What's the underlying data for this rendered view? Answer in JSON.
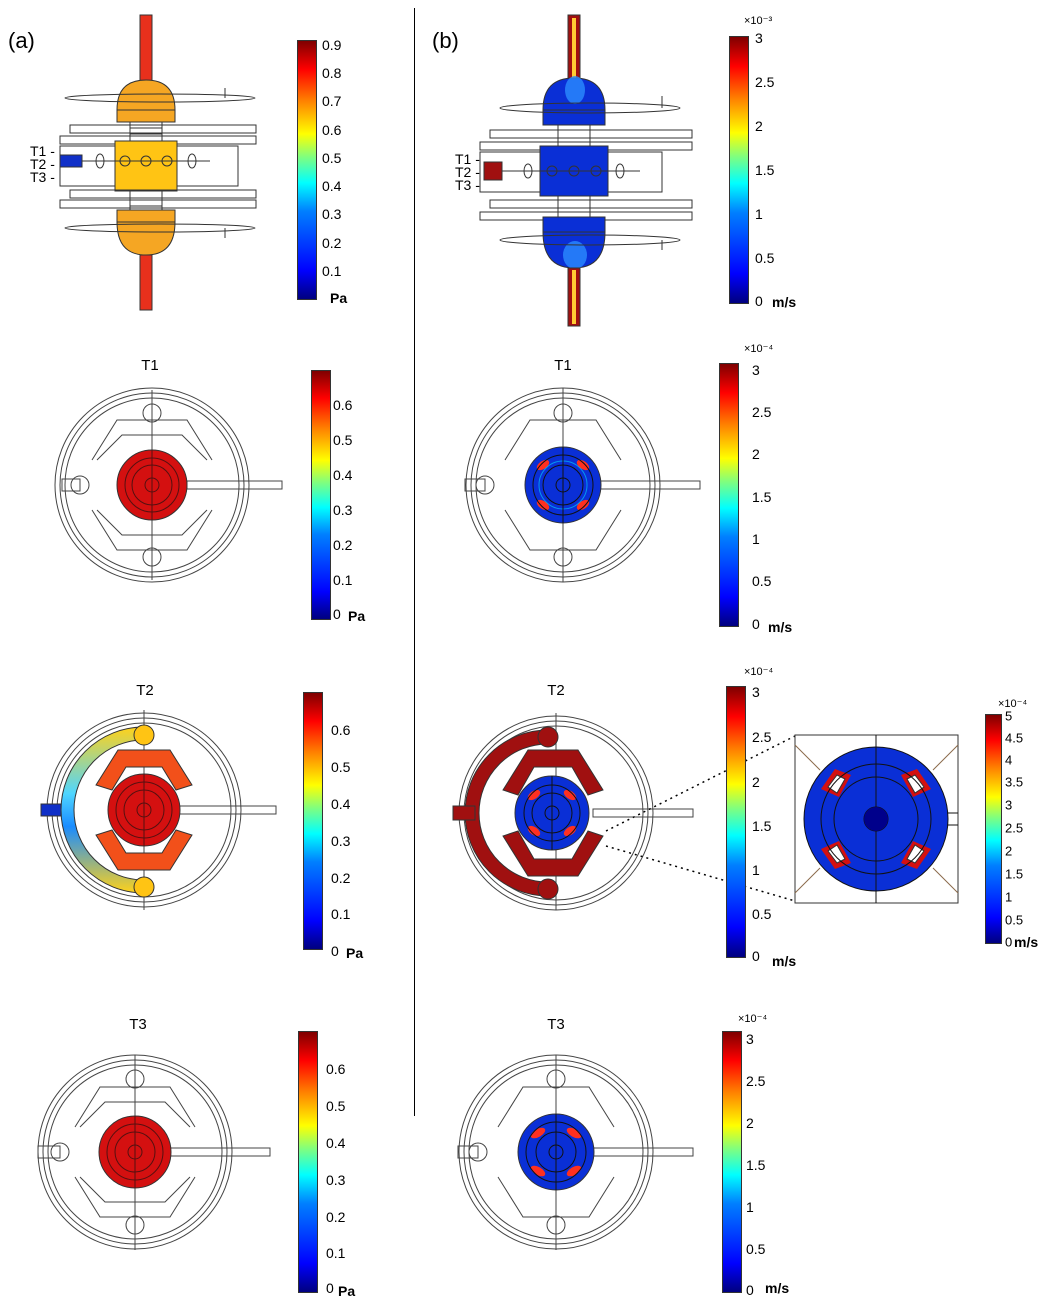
{
  "panels": {
    "a_label": "(a)",
    "b_label": "(b)"
  },
  "cross_sections": {
    "t1": "T1 -",
    "t2": "T2 -",
    "t3": "T3 -"
  },
  "titles": {
    "t1": "T1",
    "t2": "T2",
    "t3": "T3"
  },
  "colorbars": {
    "a_top": {
      "ticks": [
        "0.9",
        "0.8",
        "0.7",
        "0.6",
        "0.5",
        "0.4",
        "0.3",
        "0.2",
        "0.1"
      ],
      "unit": "Pa"
    },
    "a_t1": {
      "ticks": [
        "0.6",
        "0.5",
        "0.4",
        "0.3",
        "0.2",
        "0.1",
        "0"
      ],
      "unit": "Pa"
    },
    "a_t2": {
      "ticks": [
        "0.6",
        "0.5",
        "0.4",
        "0.3",
        "0.2",
        "0.1",
        "0"
      ],
      "unit": "Pa"
    },
    "a_t3": {
      "ticks": [
        "0.6",
        "0.5",
        "0.4",
        "0.3",
        "0.2",
        "0.1",
        "0"
      ],
      "unit": "Pa"
    },
    "b_top": {
      "exp": "×10⁻³",
      "ticks": [
        "3",
        "2.5",
        "2",
        "1.5",
        "1",
        "0.5",
        "0"
      ],
      "unit": "m/s"
    },
    "b_t1": {
      "exp": "×10⁻⁴",
      "ticks": [
        "3",
        "2.5",
        "2",
        "1.5",
        "1",
        "0.5",
        "0"
      ],
      "unit": "m/s"
    },
    "b_t2": {
      "exp": "×10⁻⁴",
      "ticks": [
        "3",
        "2.5",
        "2",
        "1.5",
        "1",
        "0.5",
        "0"
      ],
      "unit": "m/s"
    },
    "b_zoom": {
      "exp": "×10⁻⁴",
      "ticks": [
        "5",
        "4.5",
        "4",
        "3.5",
        "3",
        "2.5",
        "2",
        "1.5",
        "1",
        "0.5",
        "0"
      ],
      "unit": "m/s"
    },
    "b_t3": {
      "exp": "×10⁻⁴",
      "ticks": [
        "3",
        "2.5",
        "2",
        "1.5",
        "1",
        "0.5",
        "0"
      ],
      "unit": "m/s"
    }
  },
  "colors": {
    "pressure_high": "#e8231a",
    "pressure_mid": "#f5a623",
    "velocity_low": "#0a2fd6",
    "velocity_high": "#a01010"
  }
}
